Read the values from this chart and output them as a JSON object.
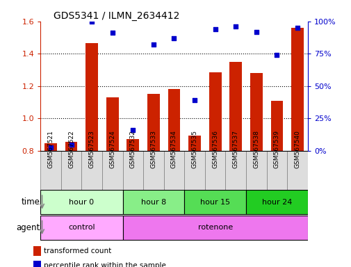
{
  "title": "GDS5341 / ILMN_2634412",
  "samples": [
    "GSM567521",
    "GSM567522",
    "GSM567523",
    "GSM567524",
    "GSM567532",
    "GSM567533",
    "GSM567534",
    "GSM567535",
    "GSM567536",
    "GSM567537",
    "GSM567538",
    "GSM567539",
    "GSM567540"
  ],
  "bar_values": [
    0.845,
    0.855,
    1.465,
    1.13,
    0.875,
    1.15,
    1.18,
    0.895,
    1.285,
    1.35,
    1.28,
    1.11,
    1.56
  ],
  "dot_values_pct": [
    2.5,
    5.0,
    100.0,
    91.0,
    16.0,
    82.0,
    87.0,
    39.0,
    94.0,
    96.0,
    92.0,
    74.0,
    95.0
  ],
  "ylim_left": [
    0.8,
    1.6
  ],
  "ylim_right": [
    0,
    100
  ],
  "yticks_left": [
    0.8,
    1.0,
    1.2,
    1.4,
    1.6
  ],
  "yticks_right": [
    0,
    25,
    50,
    75,
    100
  ],
  "ytick_labels_right": [
    "0%",
    "25%",
    "50%",
    "75%",
    "100%"
  ],
  "bar_color": "#cc2200",
  "dot_color": "#0000cc",
  "bar_bottom": 0.8,
  "time_groups": [
    {
      "label": "hour 0",
      "start": 0,
      "end": 4,
      "color": "#ccffcc"
    },
    {
      "label": "hour 8",
      "start": 4,
      "end": 7,
      "color": "#88ee88"
    },
    {
      "label": "hour 15",
      "start": 7,
      "end": 10,
      "color": "#55dd55"
    },
    {
      "label": "hour 24",
      "start": 10,
      "end": 13,
      "color": "#22cc22"
    }
  ],
  "agent_groups": [
    {
      "label": "control",
      "start": 0,
      "end": 4,
      "color": "#ffaaff"
    },
    {
      "label": "rotenone",
      "start": 4,
      "end": 13,
      "color": "#ee77ee"
    }
  ],
  "legend_bar_label": "transformed count",
  "legend_dot_label": "percentile rank within the sample",
  "time_label": "time",
  "agent_label": "agent",
  "tick_label_color_left": "#cc2200",
  "tick_label_color_right": "#0000cc",
  "background_color": "#ffffff",
  "sample_box_color": "#dddddd",
  "sample_box_edge": "#888888"
}
